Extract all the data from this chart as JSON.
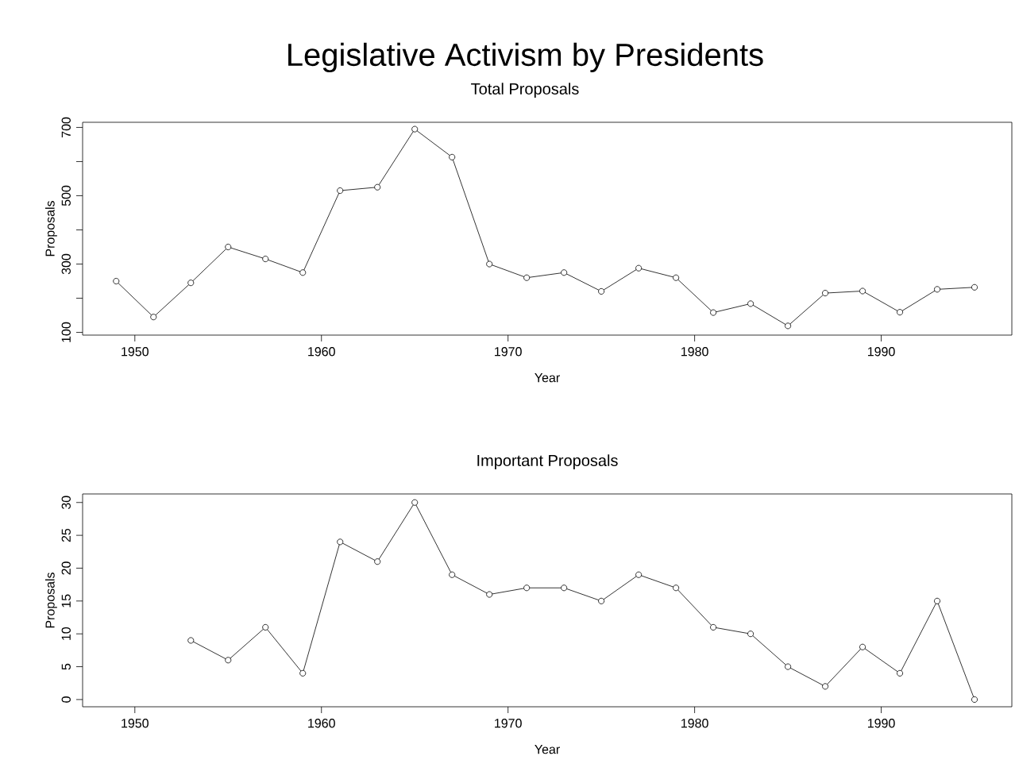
{
  "chart_data": [
    {
      "type": "line",
      "title": "Legislative Activism by Presidents",
      "subtitle": "Total Proposals",
      "xlabel": "Year",
      "ylabel": "Proposals",
      "x": [
        1949,
        1951,
        1953,
        1955,
        1957,
        1959,
        1961,
        1963,
        1965,
        1967,
        1969,
        1971,
        1973,
        1975,
        1977,
        1979,
        1981,
        1983,
        1985,
        1987,
        1989,
        1991,
        1993,
        1995
      ],
      "values": [
        250,
        145,
        245,
        350,
        315,
        275,
        515,
        525,
        695,
        613,
        300,
        260,
        275,
        220,
        288,
        260,
        158,
        184,
        119,
        215,
        221,
        159,
        226,
        232
      ],
      "color": "#000000",
      "marker": "circle",
      "line_style": "solid",
      "grid": false,
      "xlim": [
        1947.2,
        1997
      ],
      "xticks": [
        1950,
        1960,
        1970,
        1980,
        1990
      ],
      "ylim": [
        92,
        715
      ],
      "yticks": [
        100,
        {
          "value": 200,
          "label": null
        },
        300,
        {
          "value": 400,
          "label": null
        },
        500,
        {
          "value": 600,
          "label": null
        },
        700
      ]
    },
    {
      "type": "line",
      "title": "Important Proposals",
      "xlabel": "Year",
      "ylabel": "Proposals",
      "x": [
        1953,
        1955,
        1957,
        1959,
        1961,
        1963,
        1965,
        1967,
        1969,
        1971,
        1973,
        1975,
        1977,
        1979,
        1981,
        1983,
        1985,
        1987,
        1989,
        1991,
        1993,
        1995
      ],
      "values": [
        9,
        6,
        11,
        4,
        24,
        21,
        30,
        19,
        16,
        17,
        17,
        15,
        19,
        17,
        11,
        10,
        5,
        2,
        8,
        4,
        15,
        0
      ],
      "color": "#000000",
      "marker": "circle",
      "line_style": "solid",
      "grid": false,
      "xlim": [
        1947.2,
        1997
      ],
      "xticks": [
        1950,
        1960,
        1970,
        1980,
        1990
      ],
      "ylim": [
        -1.1,
        31.3
      ],
      "yticks": [
        0,
        5,
        10,
        15,
        20,
        25,
        30
      ]
    }
  ]
}
